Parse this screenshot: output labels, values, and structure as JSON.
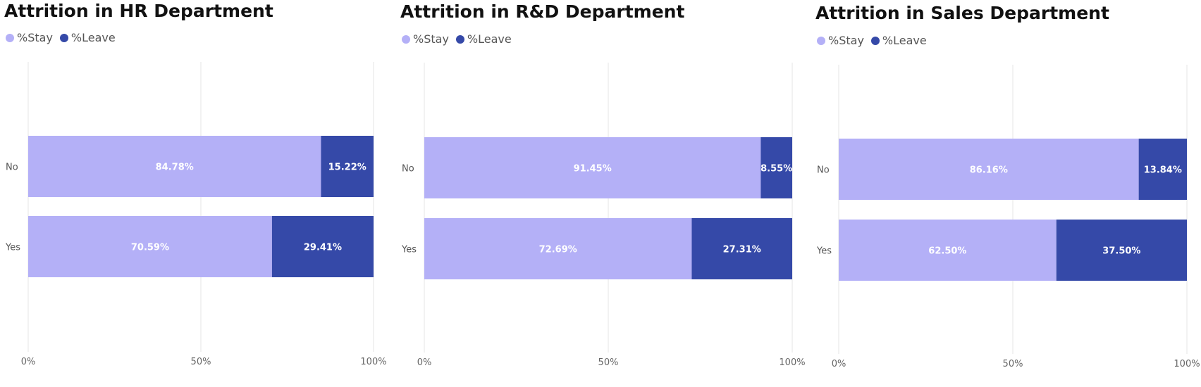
{
  "colors": {
    "stay": "#b4b0f7",
    "leave": "#3549a8",
    "grid": "#e6e6e6"
  },
  "chart_data": [
    {
      "type": "bar",
      "stacked": "100%",
      "orientation": "horizontal",
      "title": "Attrition in HR Department",
      "categories": [
        "No",
        "Yes"
      ],
      "series": [
        {
          "name": "%Stay",
          "values": [
            84.78,
            70.59
          ],
          "labels": [
            "84.78%",
            "70.59%"
          ]
        },
        {
          "name": "%Leave",
          "values": [
            15.22,
            29.41
          ],
          "labels": [
            "15.22%",
            "29.41%"
          ]
        }
      ],
      "xlim": [
        0,
        100
      ],
      "xticks": [
        "0%",
        "50%",
        "100%"
      ],
      "legend": "top-left",
      "grid": true
    },
    {
      "type": "bar",
      "stacked": "100%",
      "orientation": "horizontal",
      "title": "Attrition in R&D Department",
      "categories": [
        "No",
        "Yes"
      ],
      "series": [
        {
          "name": "%Stay",
          "values": [
            91.45,
            72.69
          ],
          "labels": [
            "91.45%",
            "72.69%"
          ]
        },
        {
          "name": "%Leave",
          "values": [
            8.55,
            27.31
          ],
          "labels": [
            "8.55%",
            "27.31%"
          ]
        }
      ],
      "xlim": [
        0,
        100
      ],
      "xticks": [
        "0%",
        "50%",
        "100%"
      ],
      "legend": "top-left",
      "grid": true
    },
    {
      "type": "bar",
      "stacked": "100%",
      "orientation": "horizontal",
      "title": "Attrition in Sales Department",
      "categories": [
        "No",
        "Yes"
      ],
      "series": [
        {
          "name": "%Stay",
          "values": [
            86.16,
            62.5
          ],
          "labels": [
            "86.16%",
            "62.50%"
          ]
        },
        {
          "name": "%Leave",
          "values": [
            13.84,
            37.5
          ],
          "labels": [
            "13.84%",
            "37.50%"
          ]
        }
      ],
      "xlim": [
        0,
        100
      ],
      "xticks": [
        "0%",
        "50%",
        "100%"
      ],
      "legend": "top-left",
      "grid": true
    }
  ]
}
